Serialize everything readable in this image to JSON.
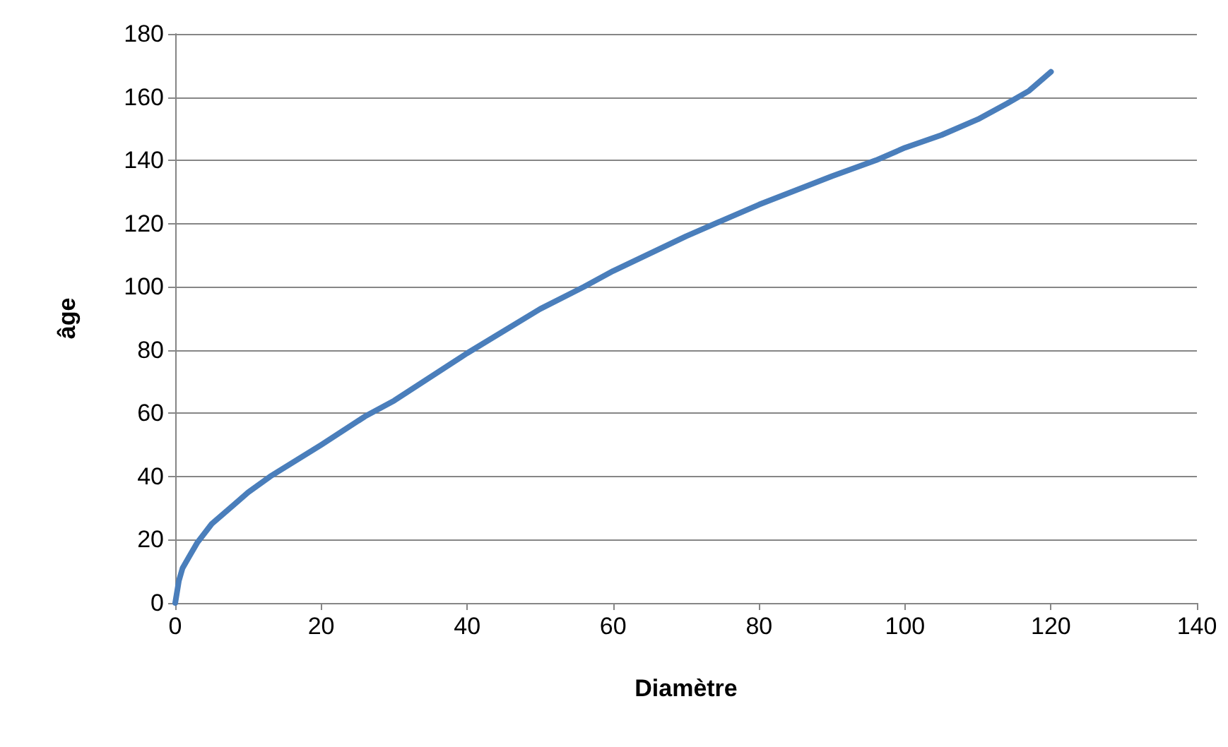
{
  "chart_data": {
    "type": "line",
    "xlabel": "Diamètre",
    "ylabel": "âge",
    "x": [
      0,
      0.5,
      1,
      2,
      3,
      5,
      8,
      10,
      13,
      20,
      26,
      30,
      40,
      50,
      56,
      60,
      70,
      75,
      80,
      90,
      96,
      100,
      105,
      110,
      114,
      117,
      120
    ],
    "series": [
      {
        "color": "#4a7ebb",
        "values": [
          0,
          7,
          11,
          15,
          19,
          25,
          31,
          35,
          40,
          50,
          59,
          64,
          79,
          93,
          100,
          105,
          116,
          121,
          126,
          135,
          140,
          144,
          148,
          153,
          158,
          162,
          168
        ]
      }
    ],
    "xlim": [
      0,
      140
    ],
    "xticks": [
      0,
      20,
      40,
      60,
      80,
      100,
      120,
      140
    ],
    "ylim": [
      0,
      180
    ],
    "yticks": [
      0,
      20,
      40,
      60,
      80,
      100,
      120,
      140,
      160,
      180
    ],
    "grid": "y",
    "marker": "none",
    "line_style": "solid"
  }
}
